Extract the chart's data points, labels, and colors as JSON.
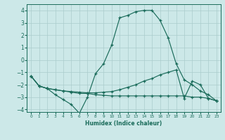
{
  "xlabel": "Humidex (Indice chaleur)",
  "xlim": [
    -0.5,
    23.5
  ],
  "ylim": [
    -4.2,
    4.5
  ],
  "xticks": [
    0,
    1,
    2,
    3,
    4,
    5,
    6,
    7,
    8,
    9,
    10,
    11,
    12,
    13,
    14,
    15,
    16,
    17,
    18,
    19,
    20,
    21,
    22,
    23
  ],
  "yticks": [
    -4,
    -3,
    -2,
    -1,
    0,
    1,
    2,
    3,
    4
  ],
  "bg_color": "#cce8e8",
  "grid_color": "#aacccc",
  "line_color": "#1a6b5a",
  "line1_x": [
    0,
    1,
    2,
    3,
    4,
    5,
    6,
    7,
    8,
    9,
    10,
    11,
    12,
    13,
    14,
    15,
    16,
    17,
    18,
    19,
    20,
    21,
    22,
    23
  ],
  "line1_y": [
    -1.3,
    -2.1,
    -2.3,
    -2.8,
    -3.2,
    -3.6,
    -4.3,
    -3.0,
    -1.1,
    -0.3,
    1.2,
    3.4,
    3.6,
    3.9,
    4.0,
    4.0,
    3.2,
    1.8,
    -0.3,
    -1.6,
    -2.0,
    -2.5,
    -2.8,
    -3.3
  ],
  "line2_x": [
    0,
    1,
    2,
    3,
    4,
    5,
    6,
    7,
    8,
    9,
    10,
    11,
    12,
    13,
    14,
    15,
    16,
    17,
    18,
    19,
    20,
    21,
    22,
    23
  ],
  "line2_y": [
    -1.3,
    -2.1,
    -2.3,
    -2.4,
    -2.5,
    -2.55,
    -2.6,
    -2.65,
    -2.65,
    -2.6,
    -2.55,
    -2.4,
    -2.2,
    -2.0,
    -1.7,
    -1.5,
    -1.2,
    -1.0,
    -0.8,
    -3.1,
    -1.7,
    -2.0,
    -3.1,
    -3.3
  ],
  "line3_x": [
    0,
    1,
    2,
    3,
    4,
    5,
    6,
    7,
    8,
    9,
    10,
    11,
    12,
    13,
    14,
    15,
    16,
    17,
    18,
    19,
    20,
    21,
    22,
    23
  ],
  "line3_y": [
    -1.3,
    -2.1,
    -2.3,
    -2.4,
    -2.5,
    -2.6,
    -2.7,
    -2.7,
    -2.8,
    -2.85,
    -2.9,
    -2.9,
    -2.9,
    -2.9,
    -2.9,
    -2.9,
    -2.9,
    -2.9,
    -2.9,
    -2.9,
    -3.0,
    -3.0,
    -3.1,
    -3.3
  ]
}
